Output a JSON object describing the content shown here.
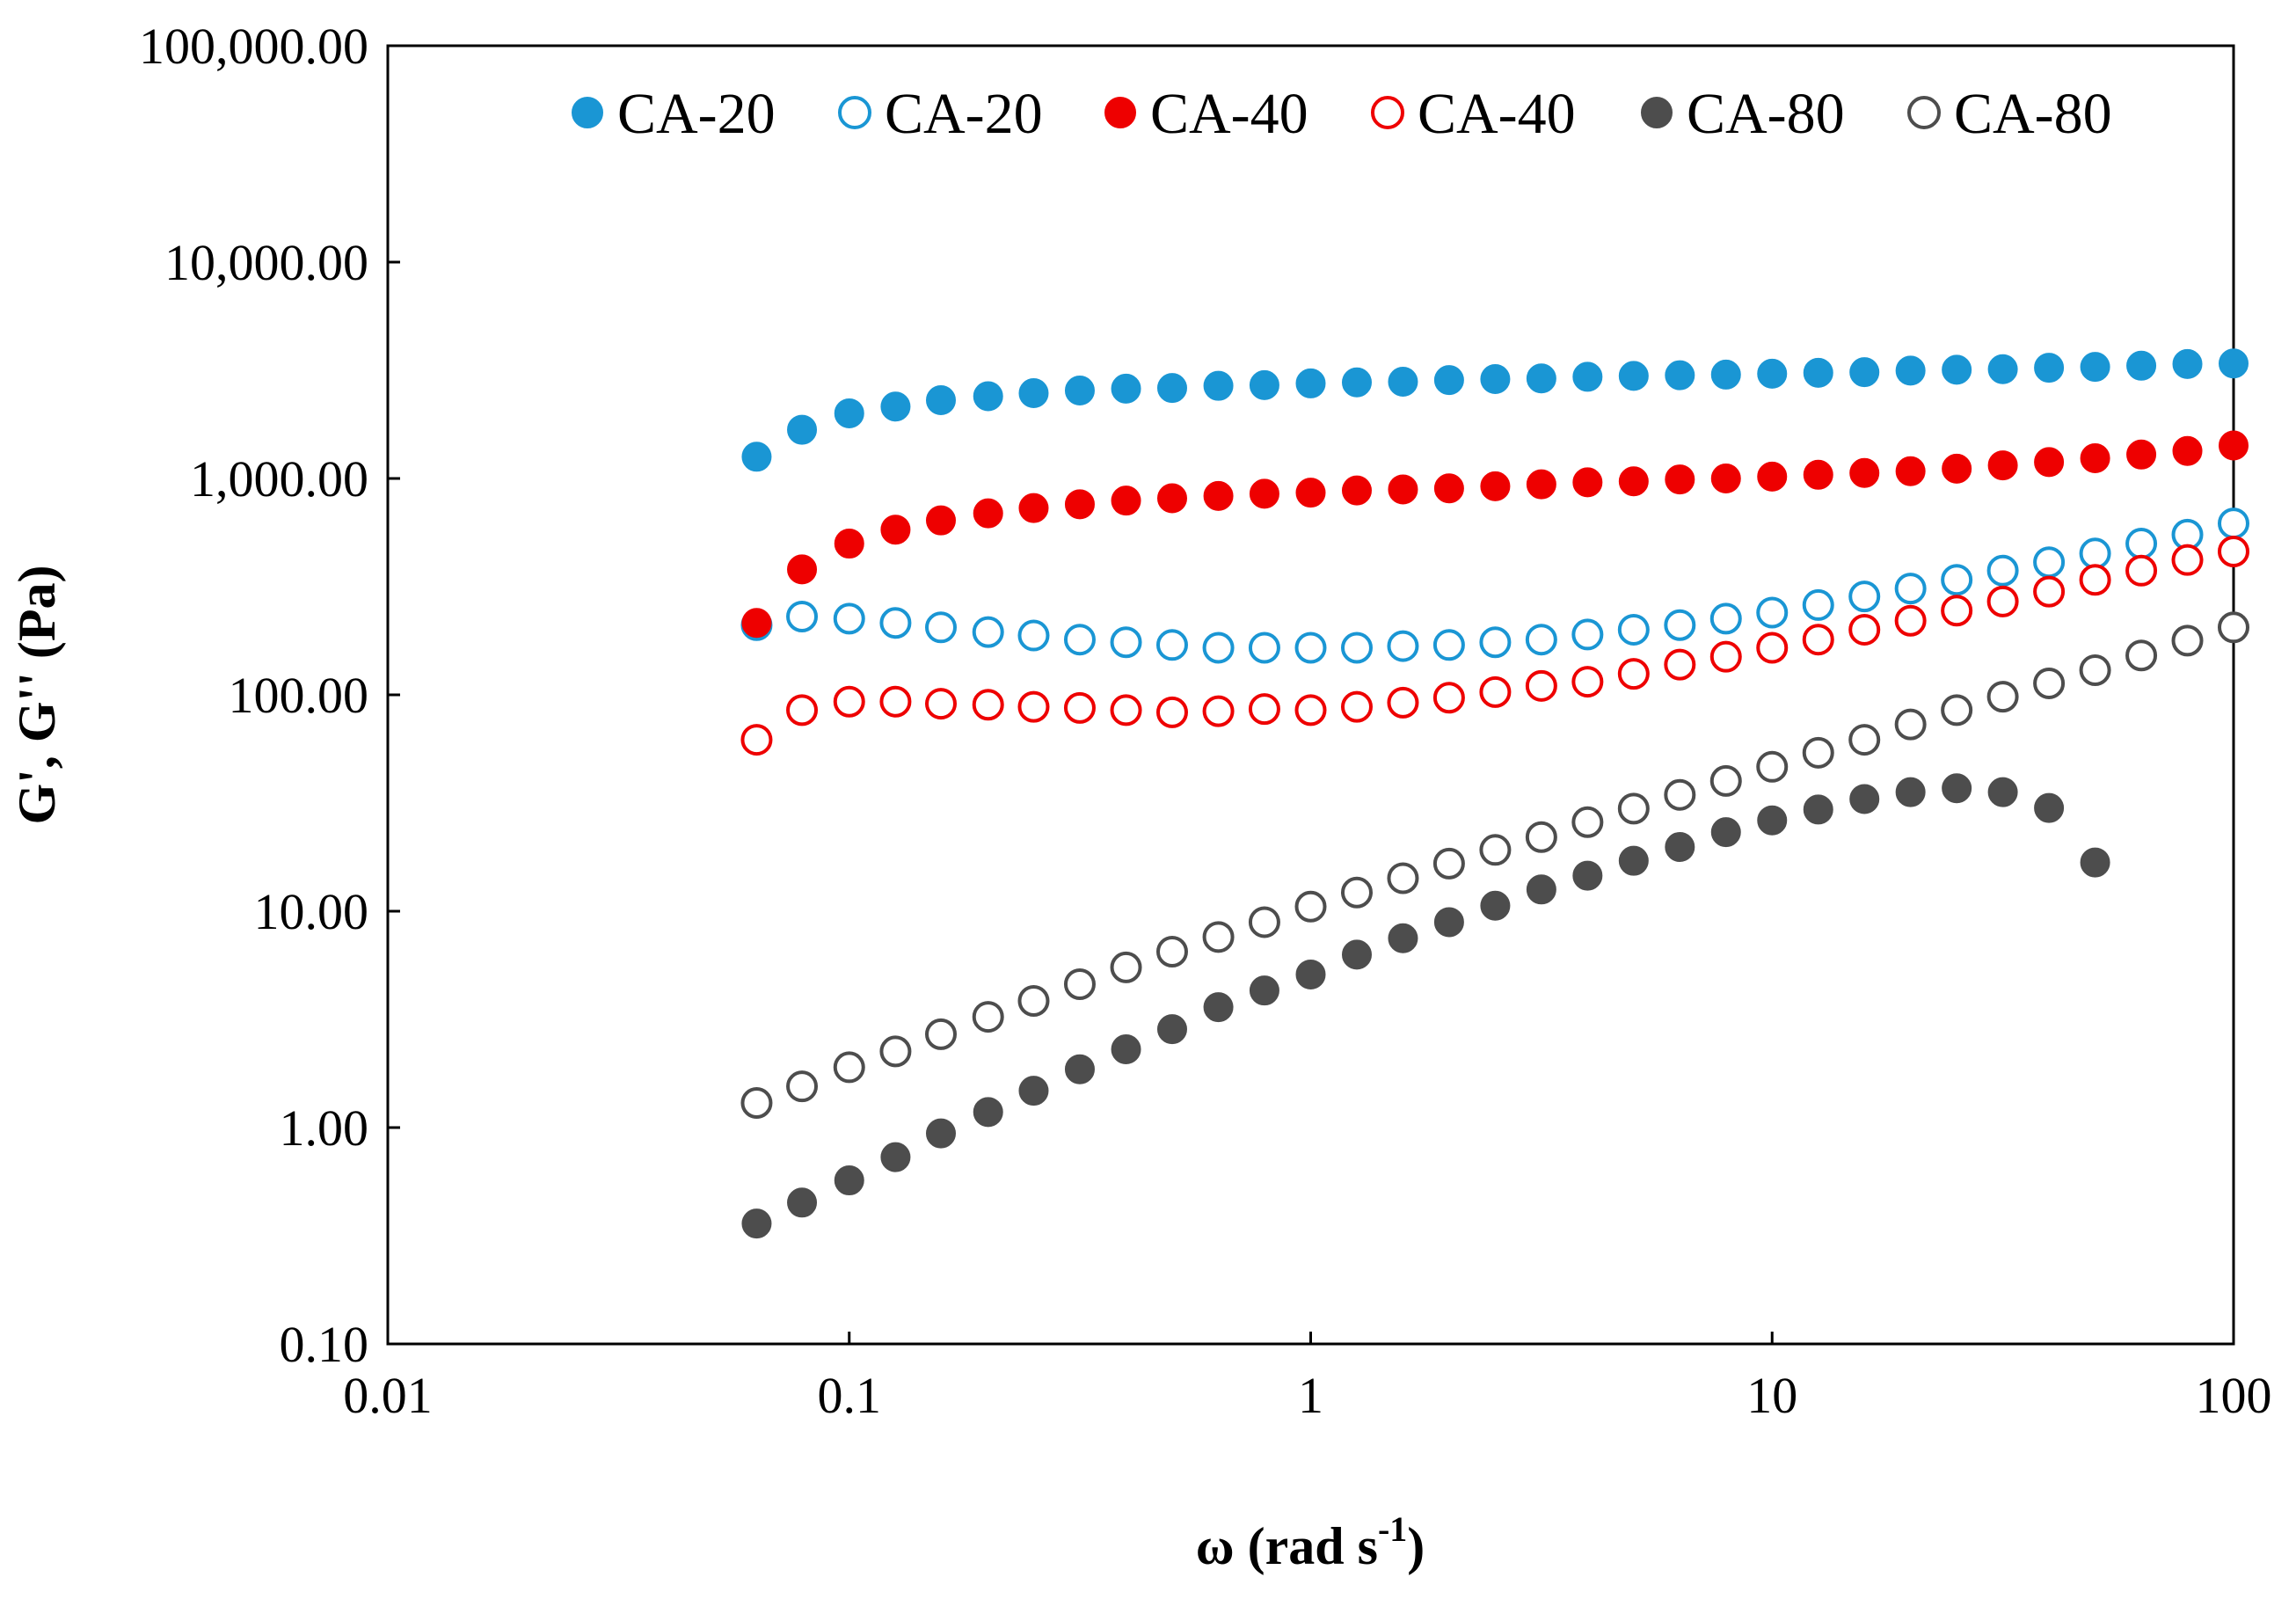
{
  "chart_data": {
    "type": "scatter",
    "title": "",
    "xlabel": "ω (rad s",
    "xlabel_sup": "-1",
    "xlabel_end": ")",
    "ylabel": "G', G'' (Pa)",
    "xscale": "log",
    "yscale": "log",
    "xlim": [
      0.01,
      100
    ],
    "ylim": [
      0.1,
      100000
    ],
    "grid": false,
    "legend_position": "top",
    "x_ticks": [
      0.01,
      0.1,
      1,
      10,
      100
    ],
    "x_tick_labels": [
      "0.01",
      "0.1",
      "1",
      "10",
      "100"
    ],
    "y_ticks": [
      0.1,
      1,
      10,
      100,
      1000,
      10000,
      100000
    ],
    "y_tick_labels": [
      "0.10",
      "1.00",
      "10.00",
      "100.00",
      "1,000.00",
      "10,000.00",
      "100,000.00"
    ],
    "x": [
      0.063,
      0.079,
      0.1,
      0.126,
      0.158,
      0.2,
      0.251,
      0.316,
      0.398,
      0.501,
      0.631,
      0.794,
      1.0,
      1.259,
      1.585,
      1.995,
      2.512,
      3.162,
      3.981,
      5.012,
      6.31,
      7.943,
      10.0,
      12.59,
      15.85,
      19.95,
      25.12,
      31.62,
      39.81,
      50.12,
      63.1,
      79.43,
      100.0
    ],
    "series": [
      {
        "name": "CA-20",
        "modulus": "G'",
        "color": "#1a96d4",
        "filled": true,
        "values": [
          1260,
          1680,
          2000,
          2150,
          2300,
          2400,
          2480,
          2550,
          2600,
          2620,
          2680,
          2700,
          2750,
          2780,
          2800,
          2850,
          2880,
          2900,
          2950,
          2980,
          3000,
          3020,
          3050,
          3080,
          3100,
          3150,
          3180,
          3200,
          3250,
          3280,
          3320,
          3380,
          3400
        ]
      },
      {
        "name": "CA-20",
        "modulus": "G''",
        "color": "#1a96d4",
        "filled": false,
        "values": [
          210,
          230,
          225,
          215,
          205,
          195,
          188,
          180,
          175,
          170,
          165,
          165,
          165,
          165,
          168,
          170,
          175,
          180,
          190,
          200,
          210,
          225,
          240,
          260,
          285,
          310,
          340,
          375,
          410,
          450,
          500,
          550,
          620
        ]
      },
      {
        "name": "CA-40",
        "modulus": "G'",
        "color": "#ee0000",
        "filled": true,
        "values": [
          215,
          380,
          500,
          580,
          640,
          690,
          730,
          760,
          790,
          810,
          830,
          850,
          860,
          880,
          890,
          900,
          920,
          940,
          960,
          970,
          990,
          1000,
          1020,
          1040,
          1060,
          1080,
          1110,
          1150,
          1190,
          1240,
          1290,
          1340,
          1420
        ]
      },
      {
        "name": "CA-40",
        "modulus": "G''",
        "color": "#ee0000",
        "filled": false,
        "values": [
          62,
          85,
          93,
          93,
          91,
          90,
          88,
          87,
          85,
          83,
          84,
          86,
          85,
          88,
          92,
          97,
          103,
          110,
          115,
          125,
          138,
          150,
          165,
          180,
          200,
          220,
          245,
          270,
          300,
          340,
          375,
          420,
          460
        ]
      },
      {
        "name": "CA-80",
        "modulus": "G'",
        "color": "#4d4d4d",
        "filled": true,
        "values": [
          0.36,
          0.45,
          0.57,
          0.73,
          0.94,
          1.18,
          1.48,
          1.86,
          2.3,
          2.85,
          3.6,
          4.3,
          5.1,
          6.3,
          7.5,
          8.9,
          10.6,
          12.6,
          14.6,
          17.1,
          19.8,
          23.2,
          26.3,
          29.5,
          33.0,
          35.5,
          37.0,
          35.5,
          30.0,
          16.8
        ]
      },
      {
        "name": "CA-80",
        "modulus": "G''",
        "color": "#4d4d4d",
        "filled": false,
        "values": [
          1.3,
          1.55,
          1.9,
          2.25,
          2.7,
          3.25,
          3.85,
          4.6,
          5.5,
          6.5,
          7.6,
          8.9,
          10.5,
          12.2,
          14.2,
          16.6,
          19.2,
          22.0,
          25.8,
          29.8,
          34.5,
          40.0,
          46.5,
          54.0,
          62.0,
          73.0,
          85.0,
          98.0,
          113,
          130,
          152,
          178,
          205
        ]
      }
    ]
  }
}
